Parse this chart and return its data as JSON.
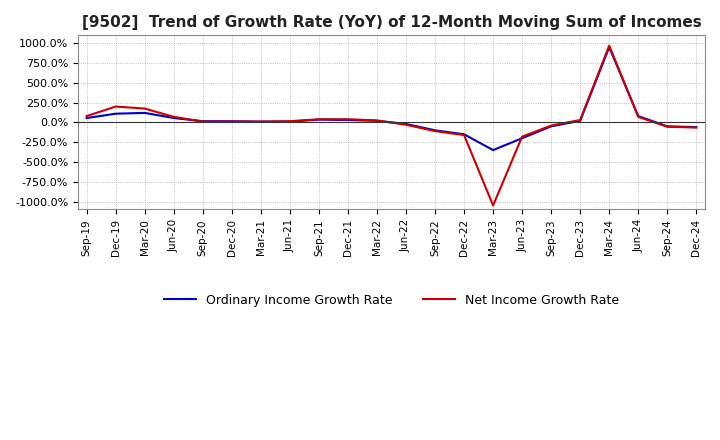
{
  "title": "[9502]  Trend of Growth Rate (YoY) of 12-Month Moving Sum of Incomes",
  "title_fontsize": 11,
  "ylim": [
    -1100,
    1100
  ],
  "yticks": [
    -1000,
    -750,
    -500,
    -250,
    0,
    250,
    500,
    750,
    1000
  ],
  "ytick_labels": [
    "-1000.0%",
    "-750.0%",
    "-500.0%",
    "-250.0%",
    "0.0%",
    "250.0%",
    "500.0%",
    "750.0%",
    "1000.0%"
  ],
  "background_color": "#ffffff",
  "plot_bg_color": "#ffffff",
  "grid_color": "#aaaaaa",
  "legend_labels": [
    "Ordinary Income Growth Rate",
    "Net Income Growth Rate"
  ],
  "line_colors": [
    "#0000cc",
    "#cc0000"
  ],
  "line_width": 1.5,
  "x_dates": [
    "Sep-19",
    "Dec-19",
    "Mar-20",
    "Jun-20",
    "Sep-20",
    "Dec-20",
    "Mar-21",
    "Jun-21",
    "Sep-21",
    "Dec-21",
    "Mar-22",
    "Jun-22",
    "Sep-22",
    "Dec-22",
    "Mar-23",
    "Jun-23",
    "Sep-23",
    "Dec-23",
    "Mar-24",
    "Jun-24",
    "Sep-24",
    "Dec-24"
  ],
  "ordinary_income": [
    55,
    110,
    120,
    55,
    15,
    15,
    10,
    10,
    35,
    30,
    20,
    -20,
    -100,
    -150,
    -350,
    -200,
    -50,
    20,
    950,
    80,
    -50,
    -60
  ],
  "net_income": [
    80,
    200,
    175,
    70,
    10,
    10,
    10,
    15,
    40,
    40,
    25,
    -30,
    -110,
    -160,
    -1050,
    -180,
    -40,
    30,
    970,
    70,
    -55,
    -65
  ]
}
